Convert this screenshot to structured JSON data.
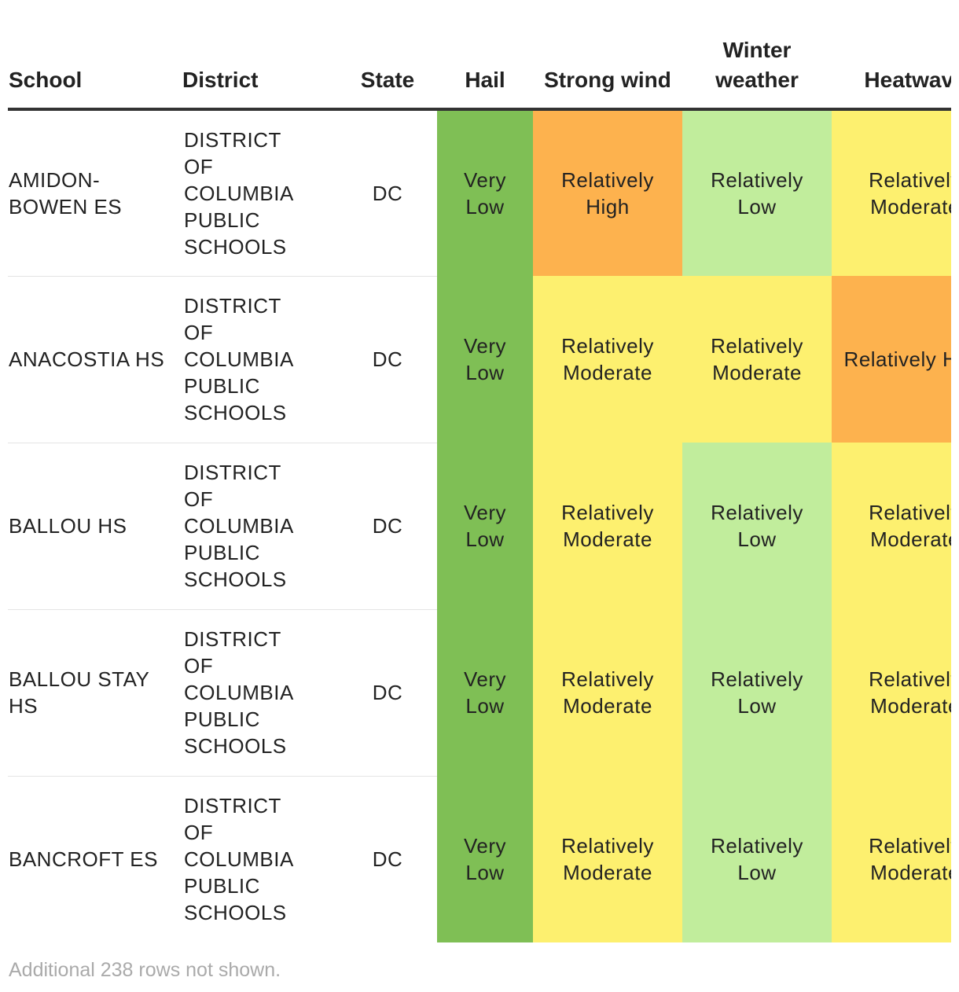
{
  "table": {
    "columns": [
      "School",
      "District",
      "State",
      "Hail",
      "Strong wind",
      "Winter weather",
      "Heatwave"
    ],
    "rows": [
      [
        "AMIDON-BOWEN ES",
        "DISTRICT OF COLUMBIA PUBLIC SCHOOLS",
        "DC",
        "Very Low",
        "Relatively High",
        "Relatively Low",
        "Relatively Moderate"
      ],
      [
        "ANACOSTIA HS",
        "DISTRICT OF COLUMBIA PUBLIC SCHOOLS",
        "DC",
        "Very Low",
        "Relatively Moderate",
        "Relatively Moderate",
        "Relatively High"
      ],
      [
        "BALLOU HS",
        "DISTRICT OF COLUMBIA PUBLIC SCHOOLS",
        "DC",
        "Very Low",
        "Relatively Moderate",
        "Relatively Low",
        "Relatively Moderate"
      ],
      [
        "BALLOU STAY HS",
        "DISTRICT OF COLUMBIA PUBLIC SCHOOLS",
        "DC",
        "Very Low",
        "Relatively Moderate",
        "Relatively Low",
        "Relatively Moderate"
      ],
      [
        "BANCROFT ES",
        "DISTRICT OF COLUMBIA PUBLIC SCHOOLS",
        "DC",
        "Very Low",
        "Relatively Moderate",
        "Relatively Low",
        "Relatively Moderate"
      ]
    ],
    "rating_colors": {
      "Very Low": "#7fbf55",
      "Relatively Low": "#c1ed9c",
      "Relatively Moderate": "#fdf06f",
      "Relatively High": "#fdb24e"
    }
  },
  "footer": {
    "note": "Additional 238 rows not shown."
  }
}
